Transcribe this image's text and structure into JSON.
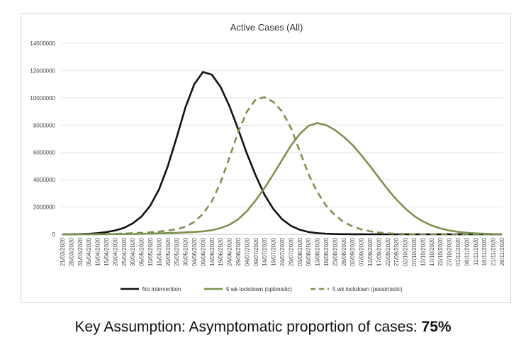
{
  "chart_data": {
    "type": "line",
    "title": "Active Cases (All)",
    "xlabel": "",
    "ylabel": "",
    "ylim": [
      0,
      14000000
    ],
    "yticks": [
      "0",
      "2000000",
      "4000000",
      "6000000",
      "8000000",
      "10000000",
      "12000000",
      "14000000"
    ],
    "x": [
      "21/03/2020",
      "26/03/2020",
      "31/03/2020",
      "05/04/2020",
      "10/04/2020",
      "15/04/2020",
      "20/04/2020",
      "25/04/2020",
      "30/04/2020",
      "05/05/2020",
      "10/05/2020",
      "15/05/2020",
      "20/05/2020",
      "25/05/2020",
      "30/05/2020",
      "04/06/2020",
      "09/06/2020",
      "14/06/2020",
      "19/06/2020",
      "24/06/2020",
      "29/06/2020",
      "04/07/2020",
      "09/07/2020",
      "14/07/2020",
      "19/07/2020",
      "24/07/2020",
      "29/07/2020",
      "03/08/2020",
      "08/08/2020",
      "13/08/2020",
      "18/08/2020",
      "23/08/2020",
      "28/08/2020",
      "02/09/2020",
      "07/09/2020",
      "12/09/2020",
      "17/09/2020",
      "22/09/2020",
      "27/09/2020",
      "02/10/2020",
      "07/10/2020",
      "12/10/2020",
      "17/10/2020",
      "22/10/2020",
      "27/10/2020",
      "01/11/2020",
      "06/11/2020",
      "11/11/2020",
      "16/11/2020",
      "21/11/2020",
      "26/11/2020"
    ],
    "grid": true,
    "legend_position": "bottom",
    "series": [
      {
        "name": "No Intervention",
        "style": "solid",
        "color": "#111111",
        "values": [
          0,
          5000,
          15000,
          40000,
          80000,
          160000,
          280000,
          470000,
          800000,
          1300000,
          2100000,
          3300000,
          5000000,
          7100000,
          9300000,
          11000000,
          11900000,
          11700000,
          10800000,
          9400000,
          7700000,
          5900000,
          4300000,
          2900000,
          1850000,
          1100000,
          620000,
          330000,
          170000,
          85000,
          40000,
          18000,
          8000,
          3000,
          1000,
          0,
          0,
          0,
          0,
          0,
          0,
          0,
          0,
          0,
          0,
          0,
          0,
          0,
          0,
          0,
          0
        ]
      },
      {
        "name": "5 wk lockdown (optimistic)",
        "style": "solid",
        "color": "#7d9150",
        "values": [
          0,
          0,
          0,
          2000,
          4000,
          8000,
          12000,
          18000,
          25000,
          35000,
          50000,
          70000,
          90000,
          110000,
          140000,
          170000,
          210000,
          300000,
          450000,
          700000,
          1100000,
          1700000,
          2500000,
          3400000,
          4400000,
          5450000,
          6500000,
          7350000,
          7950000,
          8150000,
          8000000,
          7650000,
          7150000,
          6550000,
          5800000,
          5000000,
          4150000,
          3300000,
          2550000,
          1900000,
          1350000,
          950000,
          650000,
          430000,
          280000,
          180000,
          110000,
          70000,
          40000,
          20000,
          10000
        ]
      },
      {
        "name": "5 wk lockdown (pessimistic)",
        "style": "dashed",
        "color": "#7d9150",
        "values": [
          0,
          0,
          2000,
          5000,
          10000,
          20000,
          35000,
          55000,
          80000,
          110000,
          150000,
          200000,
          270000,
          370000,
          550000,
          900000,
          1500000,
          2400000,
          3800000,
          5600000,
          7500000,
          9000000,
          9900000,
          10050000,
          9700000,
          9000000,
          7800000,
          6100000,
          4400000,
          3100000,
          2100000,
          1400000,
          900000,
          580000,
          360000,
          220000,
          130000,
          75000,
          40000,
          20000,
          10000,
          5000,
          2000,
          0,
          0,
          0,
          0,
          0,
          0,
          0,
          0
        ]
      }
    ]
  },
  "caption": {
    "text": "Key Assumption:  Asymptomatic proportion of cases: ",
    "value": "75%"
  }
}
